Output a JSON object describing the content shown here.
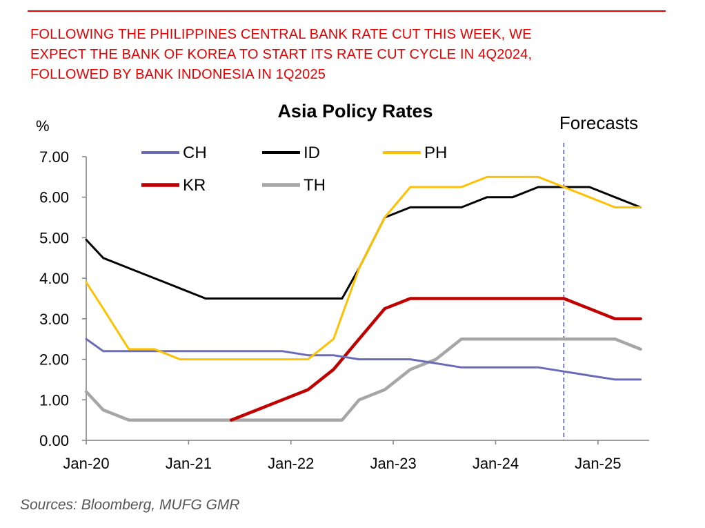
{
  "headline": {
    "line1": "FOLLOWING THE PHILIPPINES CENTRAL BANK RATE CUT THIS WEEK, WE",
    "line2": "EXPECT THE BANK OF KOREA TO START ITS RATE CUT CYCLE IN 4Q2024,",
    "line3": "FOLLOWED BY BANK INDONESIA IN 1Q2025"
  },
  "sources": "Sources:  Bloomberg, MUFG GMR",
  "colors": {
    "accent": "#e60000"
  },
  "chart_data": {
    "type": "line",
    "title": "Asia Policy Rates",
    "ylabel": "%",
    "ylim": [
      0,
      7
    ],
    "yticks": [
      "0.00",
      "1.00",
      "2.00",
      "3.00",
      "4.00",
      "5.00",
      "6.00",
      "7.00"
    ],
    "xticks": [
      "Jan-20",
      "Jan-21",
      "Jan-22",
      "Jan-23",
      "Jan-24",
      "Jan-25"
    ],
    "xrange": [
      "2020-01",
      "2025-07"
    ],
    "forecast_label": "Forecasts",
    "forecast_start": "2024-09",
    "legend_position": "top-left",
    "grid": false,
    "series": [
      {
        "name": "CH",
        "color": "#6a6ab8",
        "points": [
          [
            "2020-01",
            2.5
          ],
          [
            "2020-03",
            2.2
          ],
          [
            "2020-06",
            2.2
          ],
          [
            "2021-12",
            2.2
          ],
          [
            "2022-03",
            2.1
          ],
          [
            "2022-06",
            2.1
          ],
          [
            "2022-09",
            2.0
          ],
          [
            "2023-03",
            2.0
          ],
          [
            "2023-06",
            1.9
          ],
          [
            "2023-09",
            1.8
          ],
          [
            "2024-03",
            1.8
          ],
          [
            "2024-06",
            1.8
          ],
          [
            "2024-09",
            1.7
          ],
          [
            "2024-12",
            1.6
          ],
          [
            "2025-03",
            1.5
          ],
          [
            "2025-06",
            1.5
          ]
        ]
      },
      {
        "name": "ID",
        "color": "#000000",
        "points": [
          [
            "2020-01",
            4.95
          ],
          [
            "2020-03",
            4.5
          ],
          [
            "2020-06",
            4.25
          ],
          [
            "2020-09",
            4.0
          ],
          [
            "2020-12",
            3.75
          ],
          [
            "2021-03",
            3.5
          ],
          [
            "2022-07",
            3.5
          ],
          [
            "2022-09",
            4.25
          ],
          [
            "2022-12",
            5.5
          ],
          [
            "2023-03",
            5.75
          ],
          [
            "2023-09",
            5.75
          ],
          [
            "2023-12",
            6.0
          ],
          [
            "2024-03",
            6.0
          ],
          [
            "2024-06",
            6.25
          ],
          [
            "2024-09",
            6.25
          ],
          [
            "2024-12",
            6.25
          ],
          [
            "2025-03",
            6.0
          ],
          [
            "2025-06",
            5.75
          ]
        ]
      },
      {
        "name": "PH",
        "color": "#ffc000",
        "points": [
          [
            "2020-01",
            3.9
          ],
          [
            "2020-03",
            3.25
          ],
          [
            "2020-06",
            2.25
          ],
          [
            "2020-09",
            2.25
          ],
          [
            "2020-12",
            2.0
          ],
          [
            "2022-03",
            2.0
          ],
          [
            "2022-06",
            2.5
          ],
          [
            "2022-09",
            4.25
          ],
          [
            "2022-12",
            5.5
          ],
          [
            "2023-03",
            6.25
          ],
          [
            "2023-09",
            6.25
          ],
          [
            "2023-12",
            6.5
          ],
          [
            "2024-06",
            6.5
          ],
          [
            "2024-09",
            6.25
          ],
          [
            "2024-12",
            6.0
          ],
          [
            "2025-03",
            5.75
          ],
          [
            "2025-06",
            5.75
          ]
        ]
      },
      {
        "name": "KR",
        "color": "#c00000",
        "points": [
          [
            "2021-06",
            0.5
          ],
          [
            "2021-09",
            0.75
          ],
          [
            "2021-12",
            1.0
          ],
          [
            "2022-03",
            1.25
          ],
          [
            "2022-06",
            1.75
          ],
          [
            "2022-09",
            2.5
          ],
          [
            "2022-12",
            3.25
          ],
          [
            "2023-03",
            3.5
          ],
          [
            "2024-06",
            3.5
          ],
          [
            "2024-09",
            3.5
          ],
          [
            "2024-12",
            3.25
          ],
          [
            "2025-03",
            3.0
          ],
          [
            "2025-06",
            3.0
          ]
        ]
      },
      {
        "name": "TH",
        "color": "#a6a6a6",
        "points": [
          [
            "2020-01",
            1.2
          ],
          [
            "2020-03",
            0.75
          ],
          [
            "2020-06",
            0.5
          ],
          [
            "2022-07",
            0.5
          ],
          [
            "2022-09",
            1.0
          ],
          [
            "2022-12",
            1.25
          ],
          [
            "2023-03",
            1.75
          ],
          [
            "2023-06",
            2.0
          ],
          [
            "2023-09",
            2.5
          ],
          [
            "2024-06",
            2.5
          ],
          [
            "2025-03",
            2.5
          ],
          [
            "2025-06",
            2.25
          ]
        ]
      }
    ]
  }
}
